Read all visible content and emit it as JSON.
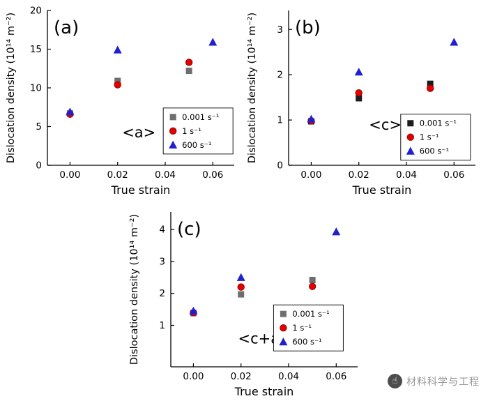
{
  "watermark": {
    "icon": "hand-icon",
    "text": "材料科学与工程"
  },
  "chart_data": [
    {
      "type": "scatter",
      "panel_label": "(a)",
      "annotation": "<a>",
      "annotation_pos": [
        0.4,
        0.82
      ],
      "xlabel": "True strain",
      "ylabel": "Dislocation density (10¹⁴ m⁻²)",
      "xlim": [
        -0.0095,
        0.069
      ],
      "ylim": [
        0,
        20
      ],
      "xticks": [
        0,
        0.02,
        0.04,
        0.06
      ],
      "xtick_labels": [
        "0.00",
        "0.02",
        "0.04",
        "0.06"
      ],
      "yticks": [
        0,
        5,
        10,
        15,
        20
      ],
      "ytick_labels": [
        "0",
        "5",
        "10",
        "15",
        "20"
      ],
      "legend_pos": [
        0.62,
        0.63
      ],
      "grid": false,
      "series": [
        {
          "name": "0.001 s⁻¹",
          "marker": "square",
          "color": "#6e6e6e",
          "points": [
            [
              0,
              6.7
            ],
            [
              0.02,
              10.9
            ],
            [
              0.05,
              12.2
            ]
          ]
        },
        {
          "name": "1 s⁻¹",
          "marker": "circle",
          "color": "#e00000",
          "points": [
            [
              0,
              6.6
            ],
            [
              0.02,
              10.4
            ],
            [
              0.05,
              13.3
            ]
          ]
        },
        {
          "name": "600 s⁻¹",
          "marker": "triangle",
          "color": "#2020d0",
          "points": [
            [
              0,
              6.9
            ],
            [
              0.02,
              14.9
            ],
            [
              0.06,
              15.9
            ]
          ]
        }
      ]
    },
    {
      "type": "scatter",
      "panel_label": "(b)",
      "annotation": "<c>",
      "annotation_pos": [
        0.43,
        0.77
      ],
      "xlabel": "True strain",
      "ylabel": "Dislocation density (10¹⁴ m⁻²)",
      "xlim": [
        -0.0095,
        0.069
      ],
      "ylim": [
        0,
        3.42
      ],
      "xticks": [
        0,
        0.02,
        0.04,
        0.06
      ],
      "xtick_labels": [
        "0.00",
        "0.02",
        "0.04",
        "0.06"
      ],
      "yticks": [
        0,
        1,
        2,
        3
      ],
      "ytick_labels": [
        "0",
        "1",
        "2",
        "3"
      ],
      "legend_pos": [
        0.6,
        0.67
      ],
      "grid": false,
      "series": [
        {
          "name": "0.001 s⁻¹",
          "marker": "square",
          "color": "#1c1c1c",
          "points": [
            [
              0,
              0.97
            ],
            [
              0.02,
              1.48
            ],
            [
              0.05,
              1.8
            ]
          ]
        },
        {
          "name": "1 s⁻¹",
          "marker": "circle",
          "color": "#e00000",
          "points": [
            [
              0,
              0.98
            ],
            [
              0.02,
              1.6
            ],
            [
              0.05,
              1.7
            ]
          ]
        },
        {
          "name": "600 s⁻¹",
          "marker": "triangle",
          "color": "#2020d0",
          "points": [
            [
              0,
              1.02
            ],
            [
              0.02,
              2.06
            ],
            [
              0.06,
              2.72
            ]
          ]
        }
      ]
    },
    {
      "type": "scatter",
      "panel_label": "(c)",
      "annotation": "<c+a>",
      "annotation_pos": [
        0.36,
        0.85
      ],
      "xlabel": "True strain",
      "ylabel": "Dislocation density (10¹⁴ m⁻²)",
      "xlim": [
        -0.0095,
        0.069
      ],
      "ylim": [
        -0.3,
        4.55
      ],
      "xticks": [
        0,
        0.02,
        0.04,
        0.06
      ],
      "xtick_labels": [
        "0.00",
        "0.02",
        "0.04",
        "0.06"
      ],
      "yticks": [
        1,
        2,
        3,
        4
      ],
      "ytick_labels": [
        "1",
        "2",
        "3",
        "4"
      ],
      "legend_pos": [
        0.55,
        0.6
      ],
      "grid": false,
      "series": [
        {
          "name": "0.001 s⁻¹",
          "marker": "square",
          "color": "#6e6e6e",
          "points": [
            [
              0,
              1.38
            ],
            [
              0.02,
              1.97
            ],
            [
              0.05,
              2.42
            ]
          ]
        },
        {
          "name": "1 s⁻¹",
          "marker": "circle",
          "color": "#e00000",
          "points": [
            [
              0,
              1.4
            ],
            [
              0.02,
              2.2
            ],
            [
              0.05,
              2.22
            ]
          ]
        },
        {
          "name": "600 s⁻¹",
          "marker": "triangle",
          "color": "#2020d0",
          "points": [
            [
              0,
              1.45
            ],
            [
              0.02,
              2.5
            ],
            [
              0.06,
              3.93
            ]
          ]
        }
      ]
    }
  ]
}
